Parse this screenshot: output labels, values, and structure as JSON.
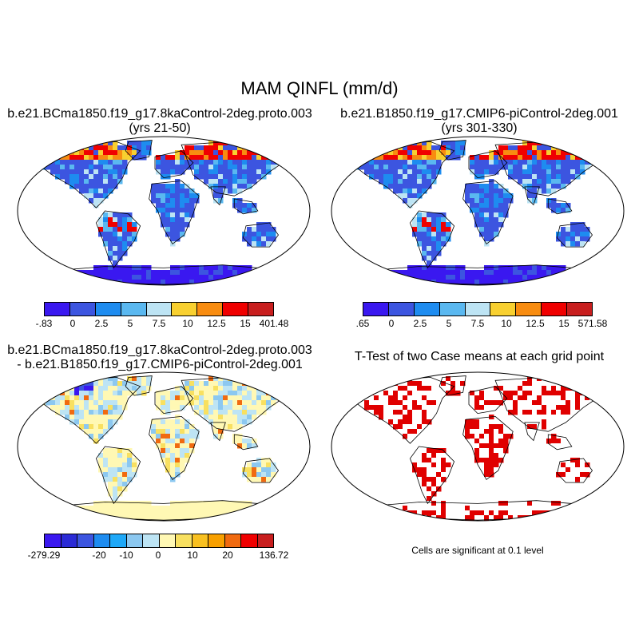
{
  "main_title": "MAM QINFL (mm/d)",
  "panels": {
    "top_left": {
      "title_line1": "b.e21.BCma1850.f19_g17.8kaControl-2deg.proto.003",
      "title_line2": "(yrs 21-50)",
      "colorbar_labels": [
        "-.83",
        "0",
        "2.5",
        "5",
        "7.5",
        "10",
        "12.5",
        "15",
        "401.48"
      ]
    },
    "top_right": {
      "title_line1": "b.e21.B1850.f19_g17.CMIP6-piControl-2deg.001",
      "title_line2": "(yrs 301-330)",
      "colorbar_labels": [
        ".65",
        "0",
        "2.5",
        "5",
        "7.5",
        "10",
        "12.5",
        "15",
        "571.58"
      ]
    },
    "bottom_left": {
      "title_line1": "b.e21.BCma1850.f19_g17.8kaControl-2deg.proto.003",
      "title_line2": "- b.e21.B1850.f19_g17.CMIP6-piControl-2deg.001",
      "colorbar_labels": [
        "-279.29",
        "-20",
        "-10",
        "0",
        "10",
        "20",
        "136.72"
      ]
    },
    "bottom_right": {
      "title_line1": "T-Test of two Case means at each grid point",
      "note": "Cells are significant at 0.1 level"
    }
  },
  "colors": {
    "seq_scale": [
      "#3a18f0",
      "#3c55e0",
      "#1e8cf0",
      "#5ab8f0",
      "#bde4f4",
      "#f8d030",
      "#f88c10",
      "#f00000",
      "#c81e1e"
    ],
    "diff_scale": [
      "#3a18f0",
      "#2b2bd6",
      "#3c55e0",
      "#1e8cf0",
      "#1ea8f8",
      "#8cc8f0",
      "#bde4f4",
      "#fff8b4",
      "#f8e060",
      "#f8c020",
      "#f8a000",
      "#f06a10",
      "#f00000",
      "#c81e1e"
    ],
    "significant": "#e00000"
  }
}
